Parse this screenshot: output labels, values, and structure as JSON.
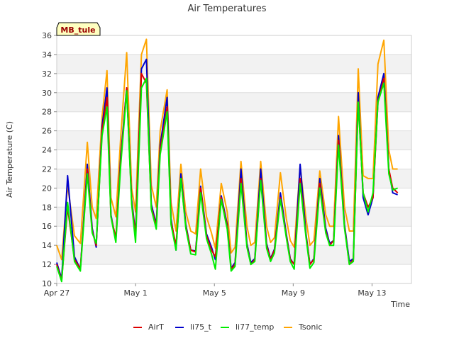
{
  "chart_data": {
    "type": "line",
    "title": "Air Temperatures",
    "xlabel": "Time",
    "ylabel": "Air Temperature (C)",
    "station_label": "MB_tule",
    "x_range_days": [
      0,
      18
    ],
    "xticks": [
      {
        "day": 0,
        "label": "Apr 27"
      },
      {
        "day": 4,
        "label": "May 1"
      },
      {
        "day": 8,
        "label": "May 5"
      },
      {
        "day": 12,
        "label": "May 9"
      },
      {
        "day": 16,
        "label": "May 13"
      }
    ],
    "ylim": [
      10,
      36
    ],
    "yticks": [
      10,
      12,
      14,
      16,
      18,
      20,
      22,
      24,
      26,
      28,
      30,
      32,
      34,
      36
    ],
    "grid": "horizontal bands",
    "legend_position": "bottom",
    "series": [
      {
        "name": "AirT",
        "color": "#dd0000",
        "x": [
          0.0,
          0.25,
          0.55,
          0.9,
          1.2,
          1.55,
          1.8,
          2.0,
          2.3,
          2.55,
          2.75,
          3.0,
          3.25,
          3.55,
          3.8,
          4.0,
          4.3,
          4.55,
          4.8,
          5.05,
          5.25,
          5.6,
          5.8,
          6.05,
          6.3,
          6.55,
          6.8,
          7.05,
          7.3,
          7.6,
          7.85,
          8.05,
          8.35,
          8.65,
          8.85,
          9.05,
          9.35,
          9.65,
          9.85,
          10.05,
          10.35,
          10.65,
          10.85,
          11.05,
          11.35,
          11.65,
          11.85,
          12.05,
          12.35,
          12.65,
          12.85,
          13.05,
          13.35,
          13.65,
          13.85,
          14.05,
          14.3,
          14.6,
          14.85,
          15.05,
          15.3,
          15.55,
          15.8,
          16.05,
          16.3,
          16.6,
          16.85,
          17.05,
          17.3
        ],
        "y": [
          12.0,
          10.3,
          18.0,
          12.5,
          11.5,
          22.0,
          15.5,
          14.0,
          26.0,
          29.5,
          17.0,
          14.8,
          23.0,
          30.5,
          18.5,
          15.0,
          32.0,
          31.0,
          18.0,
          16.0,
          24.0,
          28.5,
          16.5,
          14.0,
          21.0,
          16.0,
          13.5,
          13.3,
          20.0,
          15.0,
          13.5,
          12.8,
          19.0,
          16.0,
          11.5,
          12.0,
          21.0,
          14.0,
          12.0,
          12.5,
          21.0,
          14.0,
          12.5,
          13.5,
          19.0,
          15.0,
          12.5,
          12.0,
          21.0,
          15.0,
          12.0,
          12.5,
          20.5,
          15.5,
          14.0,
          14.5,
          25.0,
          16.0,
          12.0,
          12.5,
          29.0,
          19.5,
          18.0,
          19.0,
          29.0,
          31.5,
          22.0,
          20.0,
          19.5
        ]
      },
      {
        "name": "li75_t",
        "color": "#0000cc",
        "x": [
          0.0,
          0.25,
          0.55,
          0.9,
          1.2,
          1.55,
          1.8,
          2.0,
          2.3,
          2.55,
          2.75,
          3.0,
          3.25,
          3.55,
          3.8,
          4.0,
          4.3,
          4.55,
          4.8,
          5.05,
          5.25,
          5.6,
          5.8,
          6.05,
          6.3,
          6.55,
          6.8,
          7.05,
          7.3,
          7.6,
          7.85,
          8.05,
          8.35,
          8.65,
          8.85,
          9.05,
          9.35,
          9.65,
          9.85,
          10.05,
          10.35,
          10.65,
          10.85,
          11.05,
          11.35,
          11.65,
          11.85,
          12.05,
          12.35,
          12.65,
          12.85,
          13.05,
          13.35,
          13.65,
          13.85,
          14.05,
          14.3,
          14.6,
          14.85,
          15.05,
          15.3,
          15.55,
          15.8,
          16.05,
          16.3,
          16.6,
          16.85,
          17.05,
          17.3
        ],
        "y": [
          12.2,
          10.5,
          21.3,
          12.8,
          11.5,
          22.5,
          15.8,
          13.8,
          26.5,
          30.5,
          17.2,
          14.5,
          23.5,
          30.5,
          18.8,
          15.2,
          32.5,
          33.5,
          18.3,
          16.2,
          24.5,
          29.5,
          16.8,
          13.5,
          21.5,
          16.2,
          13.5,
          13.4,
          20.2,
          15.2,
          13.8,
          12.5,
          19.2,
          16.2,
          11.6,
          12.2,
          22.0,
          14.2,
          12.2,
          12.6,
          22.0,
          14.2,
          12.6,
          13.6,
          19.5,
          15.2,
          12.6,
          12.0,
          22.5,
          15.2,
          12.0,
          12.6,
          21.0,
          15.8,
          14.2,
          14.5,
          25.5,
          16.2,
          12.3,
          12.6,
          30.0,
          19.0,
          17.2,
          19.0,
          29.5,
          32.0,
          22.0,
          19.5,
          19.3
        ]
      },
      {
        "name": "li77_temp",
        "color": "#00ee00",
        "x": [
          0.0,
          0.25,
          0.55,
          0.9,
          1.2,
          1.55,
          1.8,
          2.0,
          2.3,
          2.55,
          2.75,
          3.0,
          3.25,
          3.55,
          3.8,
          4.0,
          4.3,
          4.55,
          4.8,
          5.05,
          5.25,
          5.6,
          5.8,
          6.05,
          6.3,
          6.55,
          6.8,
          7.05,
          7.3,
          7.6,
          7.85,
          8.05,
          8.35,
          8.65,
          8.85,
          9.05,
          9.35,
          9.65,
          9.85,
          10.05,
          10.35,
          10.65,
          10.85,
          11.05,
          11.35,
          11.65,
          11.85,
          12.05,
          12.35,
          12.65,
          12.85,
          13.05,
          13.35,
          13.65,
          13.85,
          14.05,
          14.3,
          14.6,
          14.85,
          15.05,
          15.3,
          15.55,
          15.8,
          16.05,
          16.3,
          16.6,
          16.85,
          17.05,
          17.3
        ],
        "y": [
          11.8,
          10.2,
          18.5,
          12.3,
          11.3,
          21.5,
          15.3,
          14.2,
          25.5,
          28.5,
          17.0,
          14.3,
          22.5,
          30.2,
          18.3,
          14.3,
          30.5,
          31.5,
          17.8,
          15.7,
          23.5,
          28.0,
          16.2,
          13.5,
          21.0,
          15.8,
          13.1,
          13.0,
          19.5,
          14.7,
          13.1,
          11.5,
          18.8,
          15.7,
          11.3,
          11.8,
          20.5,
          13.8,
          12.0,
          12.3,
          20.8,
          13.7,
          12.3,
          13.2,
          18.8,
          14.8,
          12.3,
          11.5,
          20.5,
          14.8,
          11.6,
          12.2,
          20.0,
          15.3,
          14.0,
          14.0,
          24.5,
          15.8,
          12.0,
          12.3,
          29.0,
          19.5,
          17.5,
          19.5,
          29.0,
          31.0,
          21.5,
          19.8,
          20.0
        ]
      },
      {
        "name": "Tsonic",
        "color": "#ffa500",
        "x": [
          0.0,
          0.25,
          0.55,
          0.9,
          1.2,
          1.55,
          1.8,
          2.0,
          2.3,
          2.55,
          2.75,
          3.0,
          3.25,
          3.55,
          3.8,
          4.0,
          4.3,
          4.55,
          4.8,
          5.05,
          5.25,
          5.6,
          5.8,
          6.05,
          6.3,
          6.55,
          6.8,
          7.05,
          7.3,
          7.6,
          7.85,
          8.05,
          8.35,
          8.65,
          8.85,
          9.05,
          9.35,
          9.65,
          9.85,
          10.05,
          10.35,
          10.65,
          10.85,
          11.05,
          11.35,
          11.65,
          11.85,
          12.05,
          12.35,
          12.65,
          12.85,
          13.05,
          13.35,
          13.65,
          13.85,
          14.05,
          14.3,
          14.6,
          14.85,
          15.05,
          15.3,
          15.55,
          15.8,
          16.05,
          16.3,
          16.6,
          16.85,
          17.05,
          17.3
        ],
        "y": [
          14.0,
          12.5,
          20.3,
          15.0,
          14.2,
          24.8,
          18.0,
          16.8,
          27.5,
          32.3,
          19.0,
          17.0,
          25.5,
          34.2,
          20.0,
          17.5,
          34.0,
          35.6,
          20.3,
          18.0,
          26.0,
          30.3,
          18.5,
          15.5,
          22.5,
          17.5,
          15.5,
          15.2,
          22.0,
          17.0,
          15.3,
          13.7,
          20.5,
          17.5,
          13.2,
          13.8,
          22.8,
          16.0,
          14.0,
          14.3,
          22.8,
          16.0,
          14.3,
          14.8,
          21.6,
          16.8,
          14.5,
          13.8,
          22.3,
          16.8,
          14.0,
          14.5,
          21.8,
          17.2,
          16.0,
          16.0,
          27.5,
          18.0,
          15.5,
          15.5,
          32.5,
          21.3,
          21.0,
          21.0,
          33.0,
          35.5,
          24.0,
          22.0,
          22.0
        ]
      }
    ]
  }
}
